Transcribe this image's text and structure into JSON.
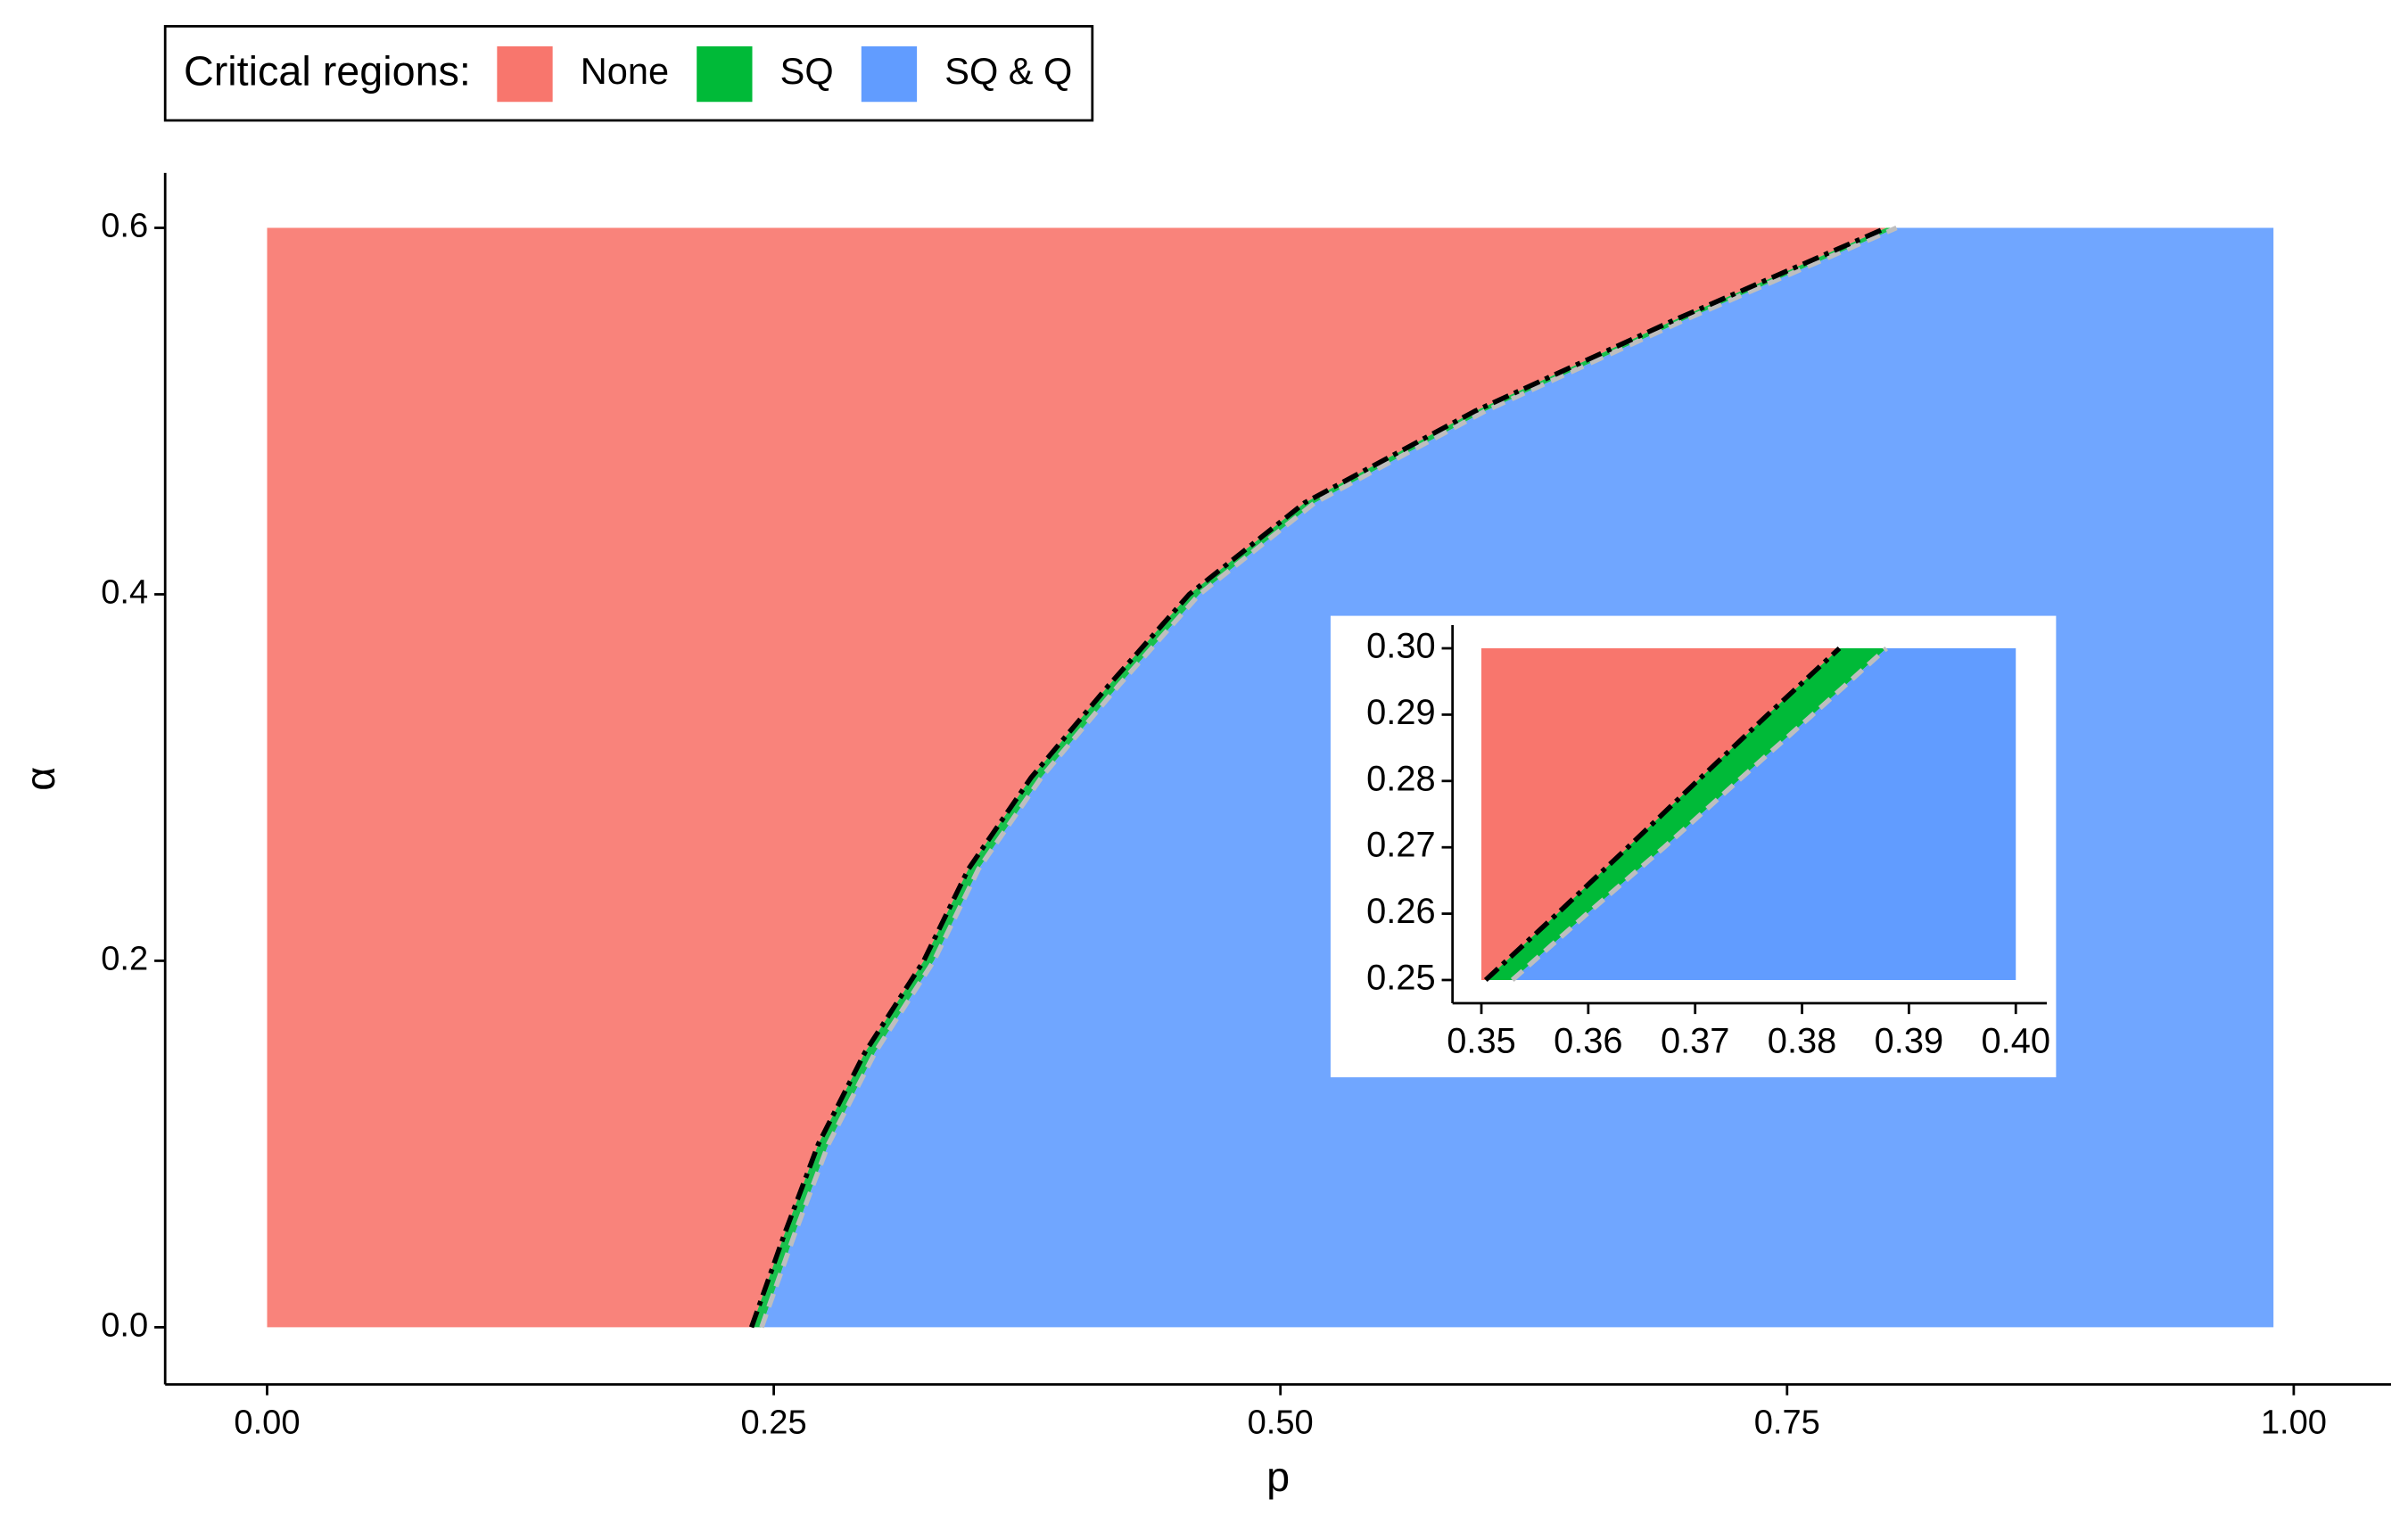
{
  "chart_data": [
    {
      "type": "region",
      "legend_title": "Critical regions:",
      "regions": [
        {
          "name": "None",
          "color": "#F8766D"
        },
        {
          "name": "SQ",
          "color": "#00BA38"
        },
        {
          "name": "SQ & Q",
          "color": "#619CFF"
        }
      ],
      "x_label": "p",
      "y_label": "α",
      "xlim": [
        -0.0503,
        1.048
      ],
      "ylim": [
        -0.0312,
        0.63
      ],
      "xticks": [
        {
          "value": 0,
          "label": "0.00"
        },
        0.25,
        {
          "value": 0.5,
          "label": "0.50"
        },
        0.75,
        {
          "value": 1,
          "label": "1.00"
        }
      ],
      "yticks": [
        {
          "value": 0,
          "label": "0.0"
        },
        0.2,
        0.4,
        0.6
      ],
      "grid_x": [
        0,
        0.99
      ],
      "grid_y": [
        0,
        0.6
      ],
      "boundaries": [
        {
          "color": "#000000",
          "dash": "dashdot",
          "x": [
            0.239,
            0.255,
            0.272,
            0.295,
            0.324,
            0.346,
            0.377,
            0.415,
            0.455,
            0.512,
            0.596,
            0.695,
            0.799
          ],
          "y": [
            0,
            0.05,
            0.1,
            0.15,
            0.2,
            0.25,
            0.3,
            0.35,
            0.4,
            0.45,
            0.5,
            0.55,
            0.6
          ]
        },
        {
          "color": "#BEBEBE",
          "dash": "dashed",
          "x": [
            0.244,
            0.26,
            0.277,
            0.3,
            0.329,
            0.351,
            0.382,
            0.42,
            0.46,
            0.517,
            0.601,
            0.7,
            0.804
          ],
          "y": [
            0,
            0.05,
            0.1,
            0.15,
            0.2,
            0.25,
            0.3,
            0.35,
            0.4,
            0.45,
            0.5,
            0.55,
            0.6
          ]
        }
      ]
    },
    {
      "type": "region",
      "region_colors": [
        "#F8766D",
        "#00BA38",
        "#619CFF"
      ],
      "xlim": [
        0.3473,
        0.4029
      ],
      "ylim": [
        0.2465,
        0.3035
      ],
      "xticks": [
        0.35,
        0.36,
        0.37,
        0.38,
        0.39,
        {
          "value": 0.4,
          "label": "0.40"
        }
      ],
      "yticks": [
        0.25,
        0.26,
        0.27,
        0.28,
        0.29,
        {
          "value": 0.3,
          "label": "0.30"
        }
      ],
      "grid_x": [
        0.35,
        0.4
      ],
      "grid_y": [
        0.25,
        0.3
      ],
      "boundaries": [
        {
          "color": "#000000",
          "dash": "dashdot",
          "x": [
            0.3504,
            0.3571,
            0.3637,
            0.3702,
            0.3768,
            0.3835
          ],
          "y": [
            0.25,
            0.26,
            0.27,
            0.28,
            0.29,
            0.3
          ]
        },
        {
          "color": "#BEBEBE",
          "dash": "dashed",
          "x": [
            0.3529,
            0.3599,
            0.3671,
            0.374,
            0.381,
            0.3879
          ],
          "y": [
            0.25,
            0.26,
            0.27,
            0.28,
            0.29,
            0.3
          ]
        }
      ]
    }
  ]
}
